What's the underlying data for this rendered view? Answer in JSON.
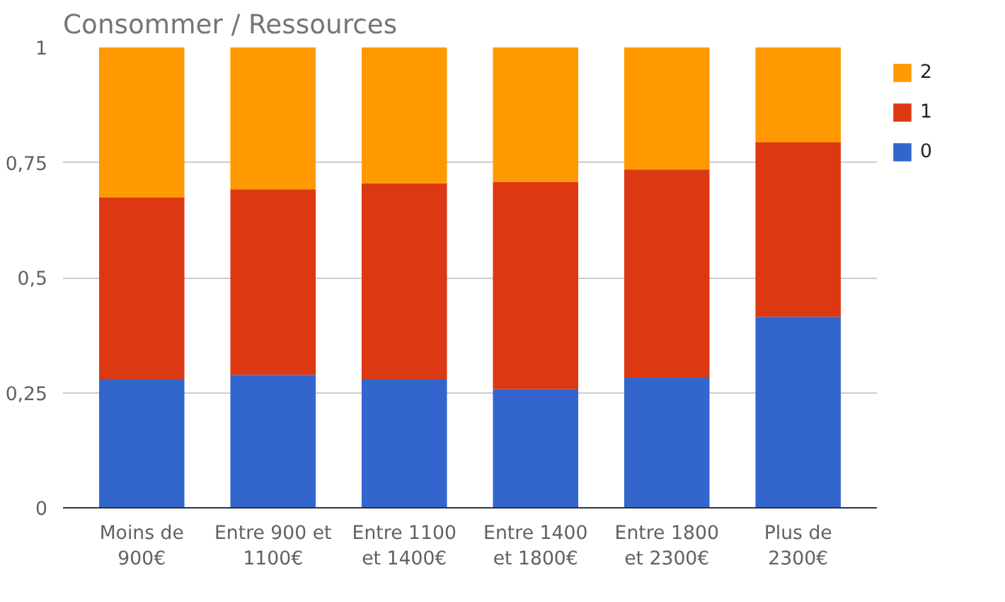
{
  "chart_data": {
    "type": "bar",
    "title": "Consommer / Ressources",
    "stacked": true,
    "categories": [
      "Moins de\n900€",
      "Entre 900 et\n1100€",
      "Entre 1100\net 1400€",
      "Entre 1400\net 1800€",
      "Entre 1800\net 2300€",
      "Plus de\n2300€"
    ],
    "series": [
      {
        "name": "0",
        "color": "#3366cc",
        "values": [
          0.28,
          0.289,
          0.28,
          0.258,
          0.283,
          0.415
        ]
      },
      {
        "name": "1",
        "color": "#dc3912",
        "values": [
          0.394,
          0.403,
          0.425,
          0.45,
          0.452,
          0.379
        ]
      },
      {
        "name": "2",
        "color": "#ff9900",
        "values": [
          0.326,
          0.308,
          0.295,
          0.292,
          0.265,
          0.206
        ]
      }
    ],
    "ylim": [
      0,
      1
    ],
    "yticks": [
      0,
      {
        "value": 0.25,
        "label": "0,25"
      },
      {
        "value": 0.5,
        "label": "0,5"
      },
      {
        "value": 0.75,
        "label": "0,75"
      },
      1
    ],
    "grid": "y",
    "legend": "right"
  }
}
